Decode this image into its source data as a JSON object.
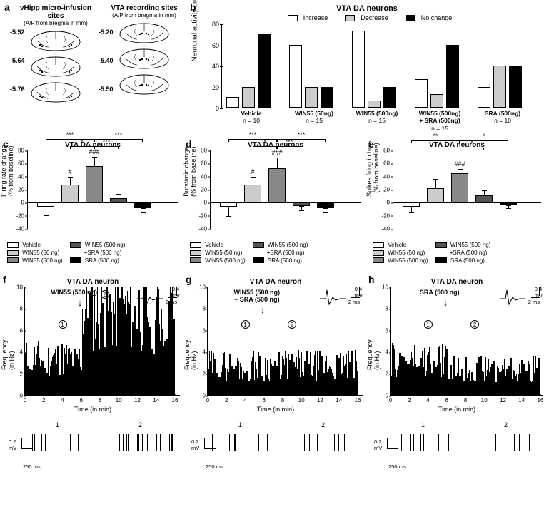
{
  "colors": {
    "white": "#ffffff",
    "light": "#cccccc",
    "mid": "#888888",
    "dark": "#555555",
    "black": "#000000"
  },
  "panel_a": {
    "left": {
      "title": "vHipp micro-infusion sites",
      "sub": "(A/P from bregma in mm)",
      "coords": [
        "-5.52",
        "-5.64",
        "-5.76"
      ]
    },
    "right": {
      "title": "VTA recording sites",
      "sub": "(A/P from bregma in mm)",
      "coords": [
        "-5.20",
        "-5.40",
        "-5.50"
      ]
    }
  },
  "panel_b": {
    "title": "VTA DA neurons",
    "ylabel": "Neuronal activity profile (in %)",
    "ylim": [
      0,
      80
    ],
    "yticks": [
      0,
      20,
      40,
      60,
      80
    ],
    "legend": [
      {
        "label": "Increase",
        "color": "#ffffff"
      },
      {
        "label": "Decrease",
        "color": "#cccccc"
      },
      {
        "label": "No change",
        "color": "#000000"
      }
    ],
    "groups": [
      {
        "label": "Vehicle",
        "n": "n = 10",
        "vals": [
          10,
          20,
          70
        ]
      },
      {
        "label": "WIN55 (50ng)",
        "n": "n = 15",
        "vals": [
          60,
          20,
          20
        ]
      },
      {
        "label": "WIN55 (500ng)",
        "n": "n = 15",
        "vals": [
          73,
          7,
          20
        ]
      },
      {
        "label": "WIN55 (500ng)\n+ SRA (500ng)",
        "n": "n = 15",
        "vals": [
          27,
          13,
          60
        ]
      },
      {
        "label": "SRA (500ng)",
        "n": "n = 10",
        "vals": [
          20,
          40,
          40
        ]
      }
    ]
  },
  "small_charts": {
    "ylim": [
      -40,
      80
    ],
    "yticks": [
      -40,
      -20,
      0,
      20,
      40,
      60,
      80
    ],
    "legend": [
      {
        "label": "Vehicle",
        "color": "#ffffff"
      },
      {
        "label": "WIN55 (50 ng)",
        "color": "#cccccc"
      },
      {
        "label": "WIN55 (500 ng)",
        "color": "#888888"
      },
      {
        "label": "WIN55 (500 ng)\n+SRA (500 ng)",
        "color": "#555555"
      },
      {
        "label": "SRA (500 ng)",
        "color": "#000000"
      }
    ],
    "c": {
      "title": "VTA DA neurons",
      "ylabel": "Firing rate change\n(% from baseline)",
      "vals": [
        -6,
        28,
        56,
        7,
        -8
      ],
      "errs": [
        14,
        12,
        14,
        6,
        8
      ],
      "sigs_bar": [
        "",
        "#",
        "###",
        "",
        ""
      ]
    },
    "d": {
      "title": "VTA DA neurons",
      "ylabel": "Burst/min change\n(% from baseline)",
      "vals": [
        -6,
        28,
        53,
        -5,
        -8
      ],
      "errs": [
        16,
        12,
        16,
        8,
        8
      ],
      "sigs_bar": [
        "",
        "#",
        "###",
        "",
        ""
      ]
    },
    "e": {
      "title": "VTA DA neurons",
      "ylabel": "Spikes firing in burst\n(% from baseline)",
      "vals": [
        -6,
        22,
        45,
        11,
        -4
      ],
      "errs": [
        10,
        14,
        7,
        8,
        5
      ],
      "sigs_bar": [
        "",
        "",
        "###",
        "",
        ""
      ]
    }
  },
  "freq": {
    "xlim": [
      0,
      16
    ],
    "xticks": [
      0,
      2,
      4,
      6,
      8,
      10,
      12,
      14,
      16
    ],
    "ylim": [
      0,
      10
    ],
    "yticks": [
      0,
      2,
      4,
      6,
      8,
      10
    ],
    "xlabel": "Time (in min)",
    "ylabel": "Frequency\n(in Hz)",
    "scale": {
      "v": "0.2\nmV",
      "h": "250 ms",
      "wv": "0.4\nmV",
      "wh": "2 ms"
    },
    "f": {
      "title": "VTA DA neuron",
      "drug": "WIN55 (500 ng)",
      "arrow_t": 6,
      "circles": [
        {
          "t": 4,
          "n": "1"
        },
        {
          "t": 8.5,
          "n": "2",
          "above": true
        }
      ]
    },
    "g": {
      "title": "VTA DA neuron",
      "drug": "WIN55 (500 ng)\n+ SRA (500 ng)",
      "arrow_t": 6,
      "circles": [
        {
          "t": 4,
          "n": "1"
        },
        {
          "t": 9,
          "n": "2"
        }
      ]
    },
    "h": {
      "title": "VTA DA neuron",
      "drug": "SRA (500 ng)",
      "arrow_t": 6,
      "circles": [
        {
          "t": 4,
          "n": "1"
        },
        {
          "t": 9,
          "n": "2"
        }
      ]
    }
  }
}
